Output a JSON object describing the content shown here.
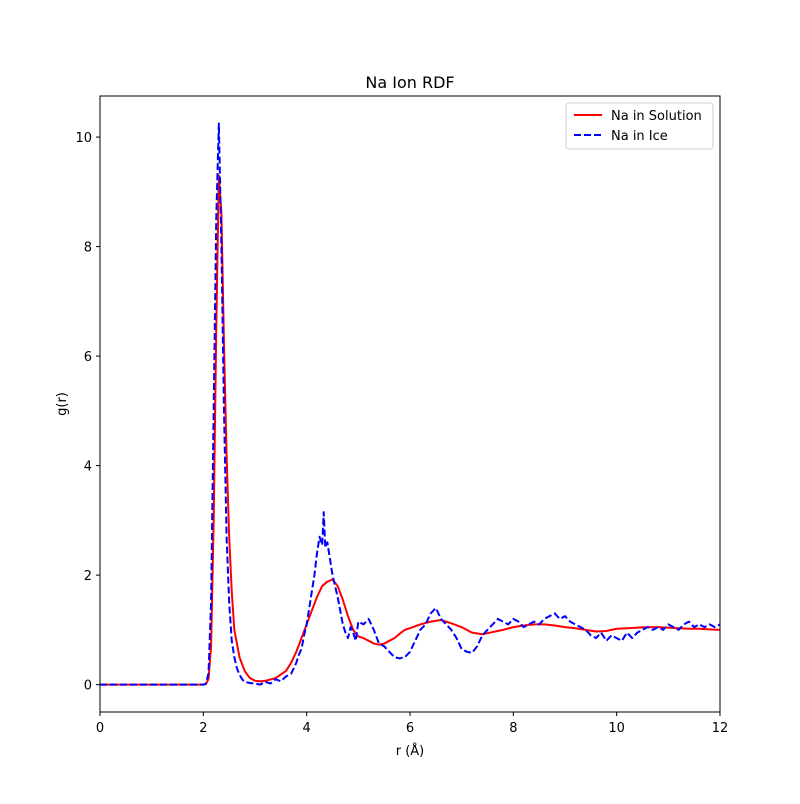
{
  "chart_data": {
    "type": "line",
    "title": "Na Ion RDF",
    "xlabel": "r (Å)",
    "ylabel": "g(r)",
    "xlim": [
      0,
      12
    ],
    "ylim": [
      -0.5,
      10.75
    ],
    "x_ticks": [
      0,
      2,
      4,
      6,
      8,
      10,
      12
    ],
    "y_ticks": [
      0,
      2,
      4,
      6,
      8,
      10
    ],
    "grid": false,
    "legend_position": "top-right",
    "series": [
      {
        "name": "Na in Solution",
        "color": "#ff0000",
        "dash": "solid",
        "points": [
          [
            0.0,
            0.0
          ],
          [
            1.0,
            0.0
          ],
          [
            1.9,
            0.0
          ],
          [
            2.0,
            0.0
          ],
          [
            2.05,
            0.01
          ],
          [
            2.1,
            0.1
          ],
          [
            2.15,
            0.7
          ],
          [
            2.2,
            3.0
          ],
          [
            2.25,
            6.5
          ],
          [
            2.3,
            9.3
          ],
          [
            2.35,
            8.6
          ],
          [
            2.4,
            6.2
          ],
          [
            2.45,
            4.2
          ],
          [
            2.5,
            2.7
          ],
          [
            2.55,
            1.7
          ],
          [
            2.6,
            1.0
          ],
          [
            2.7,
            0.5
          ],
          [
            2.8,
            0.25
          ],
          [
            2.9,
            0.12
          ],
          [
            3.0,
            0.07
          ],
          [
            3.1,
            0.06
          ],
          [
            3.2,
            0.07
          ],
          [
            3.4,
            0.12
          ],
          [
            3.6,
            0.25
          ],
          [
            3.7,
            0.4
          ],
          [
            3.8,
            0.6
          ],
          [
            3.9,
            0.85
          ],
          [
            4.0,
            1.1
          ],
          [
            4.1,
            1.35
          ],
          [
            4.2,
            1.6
          ],
          [
            4.3,
            1.8
          ],
          [
            4.4,
            1.88
          ],
          [
            4.5,
            1.92
          ],
          [
            4.6,
            1.8
          ],
          [
            4.7,
            1.55
          ],
          [
            4.8,
            1.25
          ],
          [
            4.9,
            1.0
          ],
          [
            5.0,
            0.88
          ],
          [
            5.1,
            0.85
          ],
          [
            5.2,
            0.8
          ],
          [
            5.3,
            0.75
          ],
          [
            5.4,
            0.73
          ],
          [
            5.5,
            0.75
          ],
          [
            5.6,
            0.8
          ],
          [
            5.7,
            0.85
          ],
          [
            5.8,
            0.93
          ],
          [
            5.9,
            1.0
          ],
          [
            6.0,
            1.03
          ],
          [
            6.2,
            1.1
          ],
          [
            6.4,
            1.15
          ],
          [
            6.6,
            1.18
          ],
          [
            6.8,
            1.12
          ],
          [
            7.0,
            1.05
          ],
          [
            7.2,
            0.95
          ],
          [
            7.4,
            0.92
          ],
          [
            7.6,
            0.96
          ],
          [
            7.8,
            1.0
          ],
          [
            8.0,
            1.05
          ],
          [
            8.2,
            1.08
          ],
          [
            8.4,
            1.1
          ],
          [
            8.6,
            1.1
          ],
          [
            8.8,
            1.08
          ],
          [
            9.0,
            1.05
          ],
          [
            9.2,
            1.03
          ],
          [
            9.4,
            1.0
          ],
          [
            9.6,
            0.97
          ],
          [
            9.8,
            0.98
          ],
          [
            10.0,
            1.02
          ],
          [
            10.2,
            1.03
          ],
          [
            10.4,
            1.04
          ],
          [
            10.6,
            1.05
          ],
          [
            10.8,
            1.05
          ],
          [
            11.0,
            1.04
          ],
          [
            11.2,
            1.03
          ],
          [
            11.4,
            1.02
          ],
          [
            11.6,
            1.02
          ],
          [
            11.8,
            1.01
          ],
          [
            12.0,
            1.0
          ]
        ]
      },
      {
        "name": "Na in Ice",
        "color": "#0000ff",
        "dash": "dashed",
        "points": [
          [
            0.0,
            0.0
          ],
          [
            1.0,
            0.0
          ],
          [
            2.0,
            0.0
          ],
          [
            2.05,
            0.02
          ],
          [
            2.1,
            0.2
          ],
          [
            2.15,
            1.5
          ],
          [
            2.2,
            5.0
          ],
          [
            2.25,
            8.5
          ],
          [
            2.3,
            10.25
          ],
          [
            2.35,
            8.0
          ],
          [
            2.4,
            5.0
          ],
          [
            2.45,
            2.7
          ],
          [
            2.5,
            1.5
          ],
          [
            2.55,
            0.8
          ],
          [
            2.6,
            0.5
          ],
          [
            2.65,
            0.3
          ],
          [
            2.7,
            0.18
          ],
          [
            2.75,
            0.1
          ],
          [
            2.8,
            0.05
          ],
          [
            2.9,
            0.03
          ],
          [
            3.0,
            0.02
          ],
          [
            3.1,
            0.0
          ],
          [
            3.2,
            0.05
          ],
          [
            3.3,
            0.02
          ],
          [
            3.4,
            0.1
          ],
          [
            3.5,
            0.06
          ],
          [
            3.6,
            0.15
          ],
          [
            3.7,
            0.2
          ],
          [
            3.8,
            0.4
          ],
          [
            3.85,
            0.55
          ],
          [
            3.9,
            0.65
          ],
          [
            3.95,
            0.9
          ],
          [
            4.0,
            1.1
          ],
          [
            4.05,
            1.4
          ],
          [
            4.1,
            1.7
          ],
          [
            4.15,
            2.0
          ],
          [
            4.2,
            2.4
          ],
          [
            4.25,
            2.7
          ],
          [
            4.3,
            2.55
          ],
          [
            4.33,
            3.15
          ],
          [
            4.36,
            2.5
          ],
          [
            4.4,
            2.6
          ],
          [
            4.45,
            2.3
          ],
          [
            4.5,
            2.0
          ],
          [
            4.55,
            1.8
          ],
          [
            4.6,
            1.6
          ],
          [
            4.65,
            1.35
          ],
          [
            4.7,
            1.1
          ],
          [
            4.75,
            0.95
          ],
          [
            4.8,
            0.85
          ],
          [
            4.85,
            1.05
          ],
          [
            4.9,
            0.95
          ],
          [
            4.95,
            0.8
          ],
          [
            5.0,
            1.15
          ],
          [
            5.1,
            1.1
          ],
          [
            5.2,
            1.2
          ],
          [
            5.3,
            1.0
          ],
          [
            5.4,
            0.75
          ],
          [
            5.5,
            0.7
          ],
          [
            5.6,
            0.6
          ],
          [
            5.7,
            0.5
          ],
          [
            5.8,
            0.48
          ],
          [
            5.9,
            0.5
          ],
          [
            6.0,
            0.6
          ],
          [
            6.1,
            0.8
          ],
          [
            6.2,
            1.0
          ],
          [
            6.3,
            1.1
          ],
          [
            6.4,
            1.3
          ],
          [
            6.5,
            1.4
          ],
          [
            6.6,
            1.2
          ],
          [
            6.7,
            1.1
          ],
          [
            6.8,
            1.0
          ],
          [
            6.9,
            0.85
          ],
          [
            7.0,
            0.65
          ],
          [
            7.1,
            0.6
          ],
          [
            7.2,
            0.58
          ],
          [
            7.3,
            0.7
          ],
          [
            7.4,
            0.9
          ],
          [
            7.5,
            1.0
          ],
          [
            7.6,
            1.1
          ],
          [
            7.7,
            1.2
          ],
          [
            7.8,
            1.15
          ],
          [
            7.9,
            1.1
          ],
          [
            8.0,
            1.2
          ],
          [
            8.1,
            1.15
          ],
          [
            8.2,
            1.05
          ],
          [
            8.3,
            1.1
          ],
          [
            8.4,
            1.15
          ],
          [
            8.5,
            1.1
          ],
          [
            8.6,
            1.2
          ],
          [
            8.7,
            1.25
          ],
          [
            8.8,
            1.3
          ],
          [
            8.9,
            1.2
          ],
          [
            9.0,
            1.25
          ],
          [
            9.1,
            1.15
          ],
          [
            9.2,
            1.1
          ],
          [
            9.3,
            1.05
          ],
          [
            9.4,
            1.0
          ],
          [
            9.5,
            0.9
          ],
          [
            9.6,
            0.85
          ],
          [
            9.7,
            0.95
          ],
          [
            9.8,
            0.8
          ],
          [
            9.9,
            0.9
          ],
          [
            10.0,
            0.85
          ],
          [
            10.1,
            0.8
          ],
          [
            10.2,
            0.95
          ],
          [
            10.3,
            0.85
          ],
          [
            10.4,
            0.95
          ],
          [
            10.5,
            1.0
          ],
          [
            10.6,
            1.05
          ],
          [
            10.7,
            1.0
          ],
          [
            10.8,
            1.05
          ],
          [
            10.9,
            1.0
          ],
          [
            11.0,
            1.1
          ],
          [
            11.1,
            1.05
          ],
          [
            11.2,
            1.0
          ],
          [
            11.3,
            1.1
          ],
          [
            11.4,
            1.15
          ],
          [
            11.5,
            1.05
          ],
          [
            11.6,
            1.1
          ],
          [
            11.7,
            1.05
          ],
          [
            11.8,
            1.1
          ],
          [
            11.9,
            1.05
          ],
          [
            12.0,
            1.1
          ]
        ]
      }
    ]
  }
}
